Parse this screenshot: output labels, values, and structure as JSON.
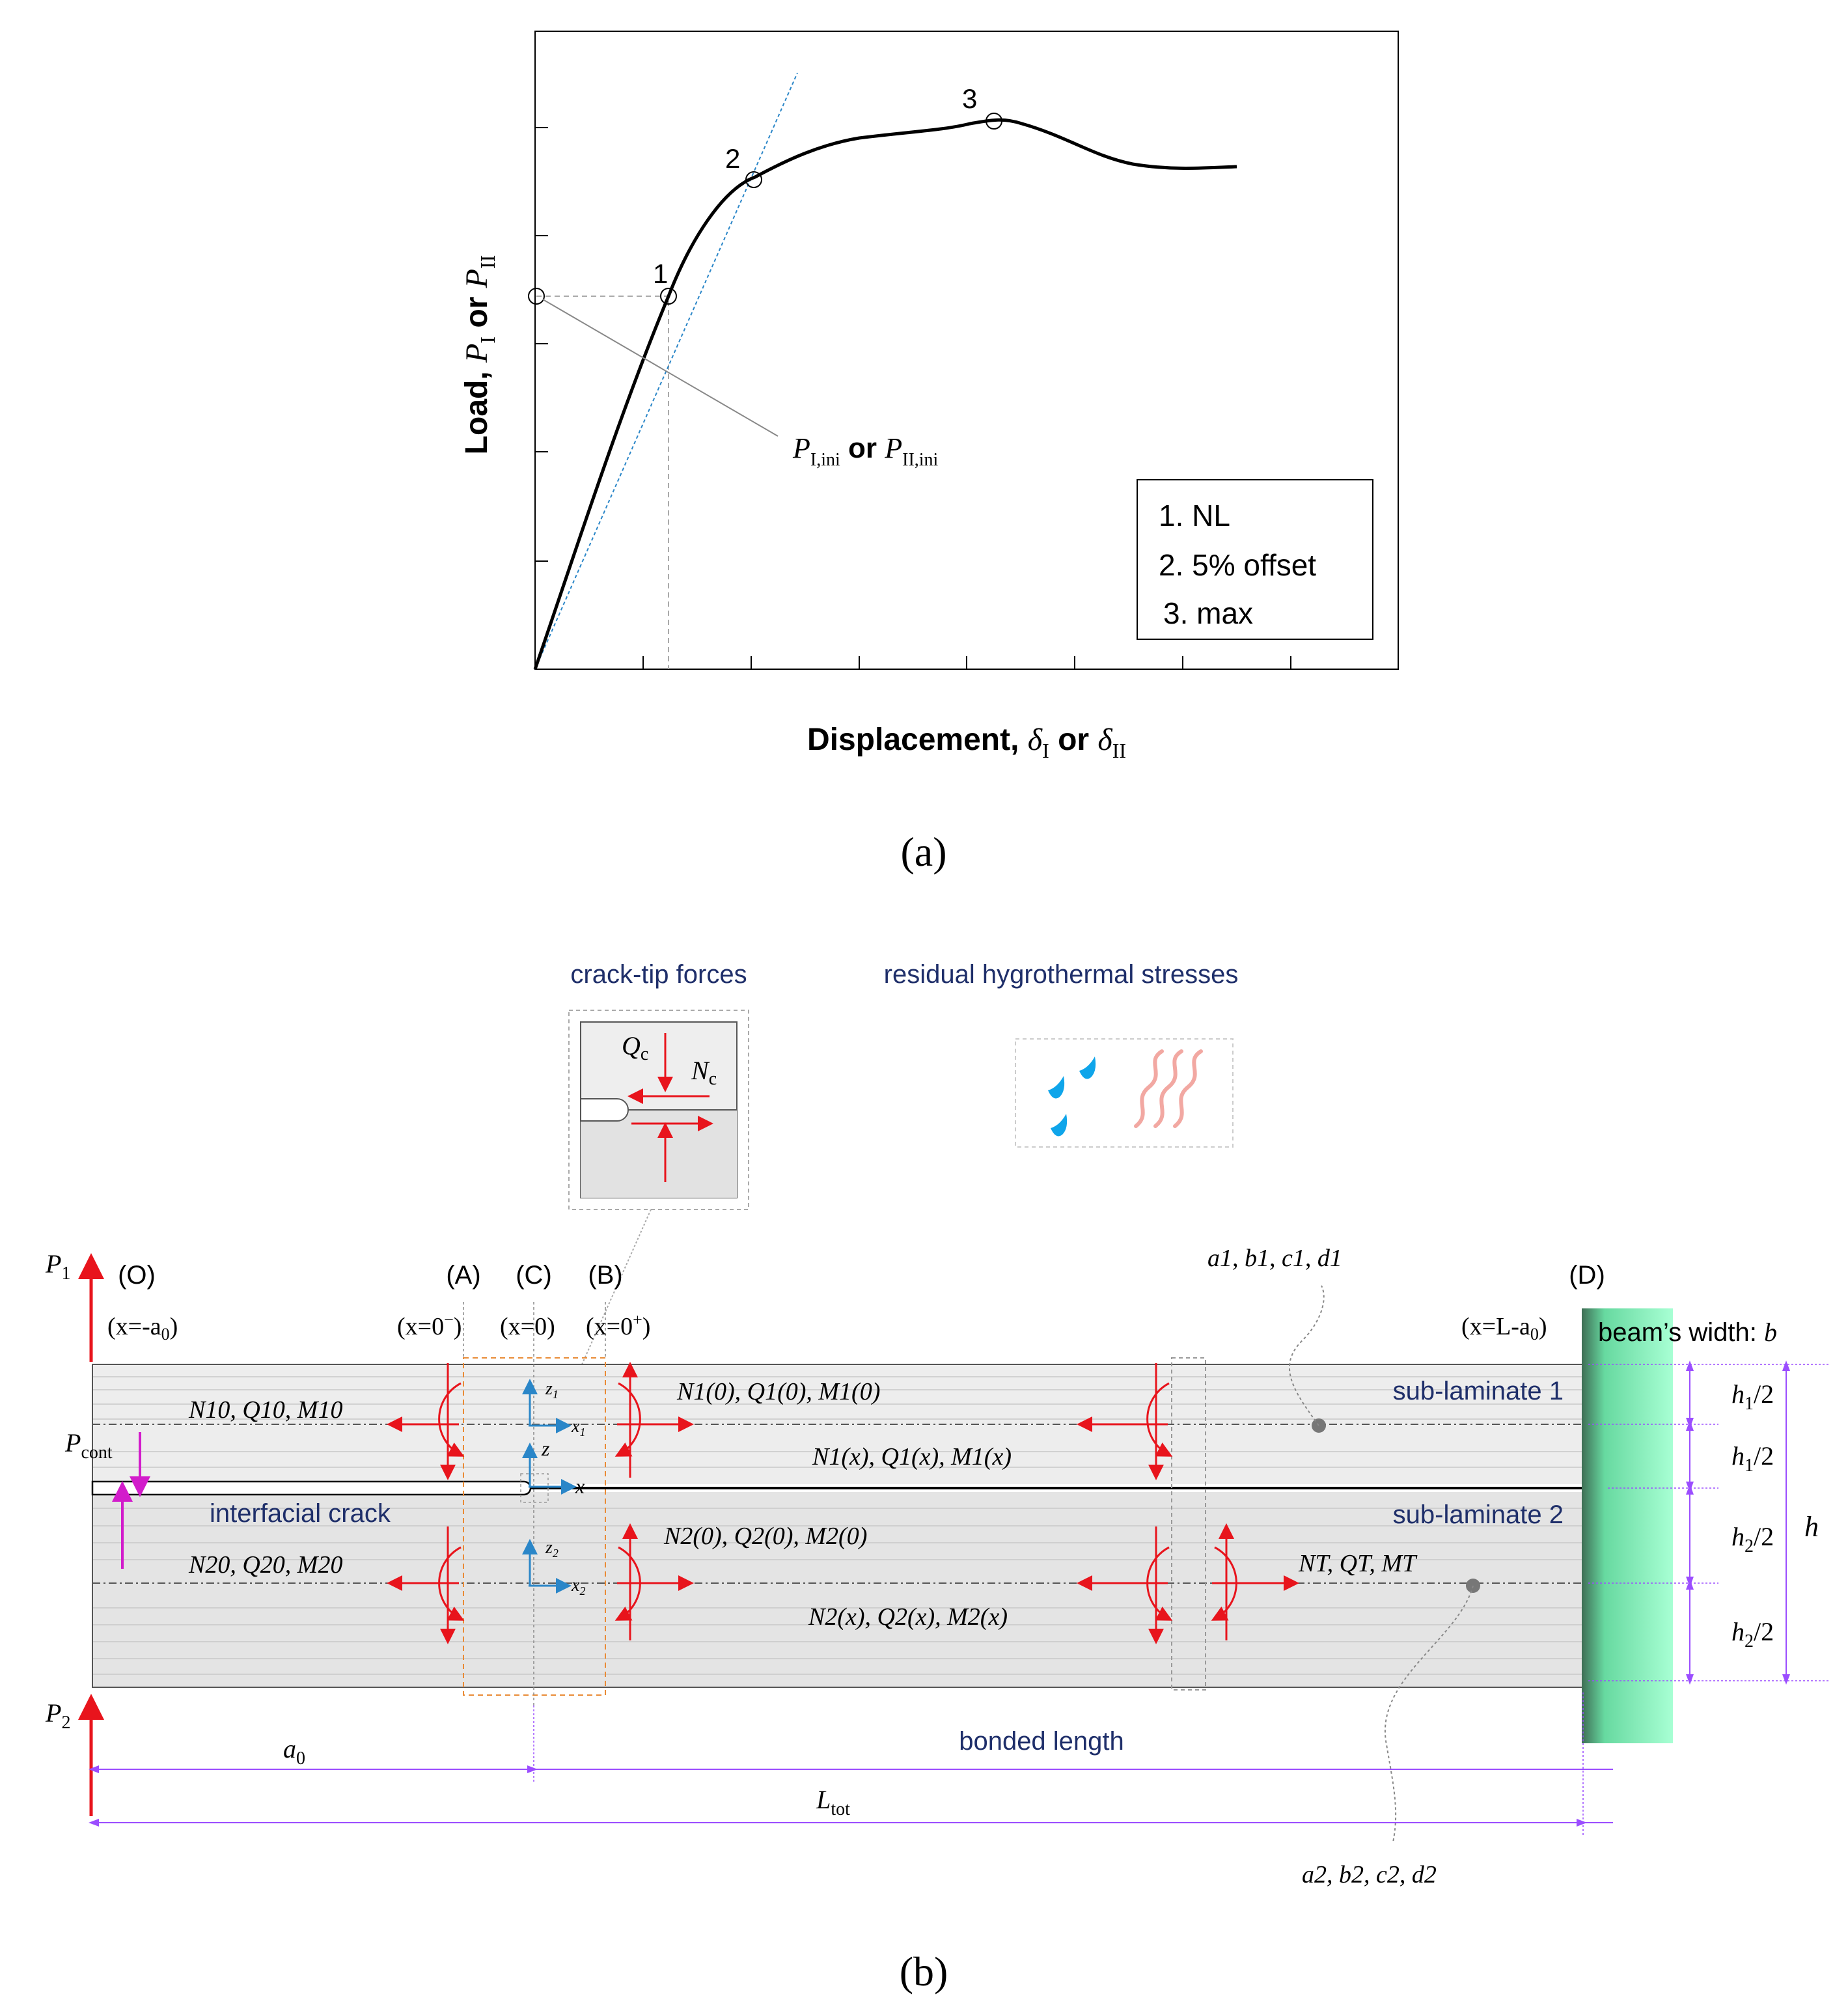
{
  "panel_a": {
    "y_label": {
      "prefix": "Load, ",
      "P": "P",
      "sub1": "I",
      "or": " or ",
      "sub2": "II"
    },
    "x_label": {
      "prefix": "Displacement, ",
      "d": "δ",
      "sub1": "I",
      "or": " or ",
      "sub2": "II"
    },
    "points": [
      "1",
      "2",
      "3"
    ],
    "callout": {
      "P": "P",
      "sub1": "I,ini",
      "or": " or ",
      "sub2": "II,ini"
    },
    "legend": [
      "1. NL",
      "2. 5% offset",
      "3. max"
    ],
    "caption": "(a)"
  },
  "panel_b": {
    "inset_titles": {
      "crack_tip": "crack-tip forces",
      "residual": "residual hygrothermal stresses"
    },
    "inset_forces": {
      "Qc": "Q",
      "Qc_sub": "c",
      "Nc": "N",
      "Nc_sub": "c"
    },
    "sections": {
      "O": "(O)",
      "A": "(A)",
      "C": "(C)",
      "B": "(B)",
      "D": "(D)"
    },
    "positions": {
      "O": {
        "pre": "(x=-a",
        "sub": "0",
        "post": ")"
      },
      "A": {
        "pre": "(x=0",
        "sup": "−",
        "post": ")"
      },
      "C": {
        "pre": "(x=0)"
      },
      "B": {
        "pre": "(x=0",
        "sup": "+",
        "post": ")"
      },
      "D": {
        "pre": "(x=L-a",
        "sub": "0",
        "post": ")"
      }
    },
    "loads": {
      "P1": "P",
      "P1_sub": "1",
      "P2": "P",
      "P2_sub": "2",
      "Pcont": "P",
      "Pcont_sub": "cont"
    },
    "labels": {
      "sub_laminate_1": "sub-laminate 1",
      "sub_laminate_2": "sub-laminate 2",
      "interfacial_crack": "interfacial crack",
      "beam_width": "beam’s width: ",
      "beam_width_sym": "b",
      "bonded_length": "bonded length"
    },
    "force_labels": {
      "N10": "N10, Q10, M10",
      "N1_0": "N1(0), Q1(0), M1(0)",
      "N1_x": "N1(x), Q1(x), M1(x)",
      "N20": "N20, Q20, M20",
      "N2_0": "N2(0), Q2(0), M2(0)",
      "N2_x": "N2(x), Q2(x), M2(x)",
      "NT": "NT, QT, MT"
    },
    "coefficients": {
      "set1": "a1, b1, c1, d1",
      "set2": "a2, b2, c2, d2"
    },
    "axes": {
      "z1": "z",
      "z1_sub": "1",
      "x1": "x",
      "x1_sub": "1",
      "z": "z",
      "x": "x",
      "z2": "z",
      "z2_sub": "2",
      "x2": "x",
      "x2_sub": "2"
    },
    "dimensions": {
      "h1_half_a": "h1/2",
      "h1_half_b": "h1/2",
      "h2_half_a": "h2/2",
      "h2_half_b": "h2/2",
      "h": "h",
      "a0": "a",
      "a0_sub": "0",
      "Ltot": "L",
      "Ltot_sub": "tot"
    },
    "caption": "(b)"
  },
  "colors": {
    "red": "#e8141c",
    "blue": "#2a86c8",
    "magenta": "#d21ccb",
    "purple": "#9b4dff",
    "orange": "#e98b36",
    "green": "#7df0b6",
    "navy": "#1f2f6a",
    "drop": "#0fa5ea",
    "heat": "#f2a8a2"
  }
}
